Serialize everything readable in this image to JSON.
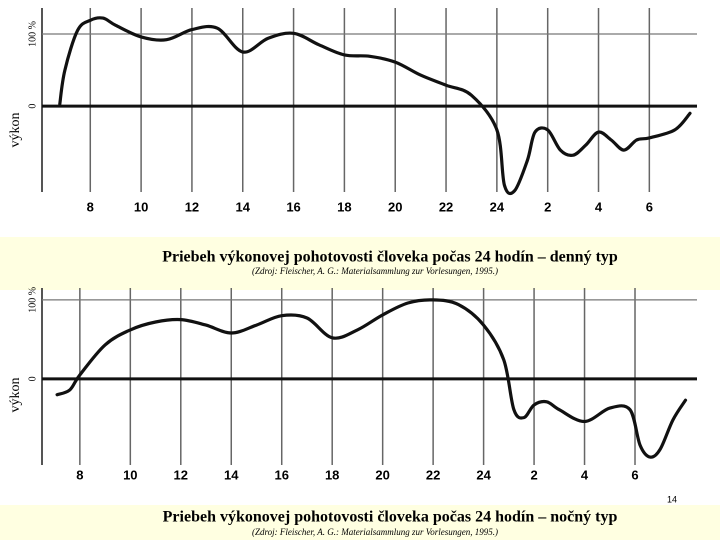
{
  "slide_number": "14",
  "chart_data": [
    {
      "type": "line",
      "title": "Priebeh výkonovej pohotovosti človeka počas 24 hodín – denný typ",
      "source": "(Zdroj: Fleischer, A. G.: Materialsammlung zur Vorlesungen, 1995.)",
      "ylabel": "výkon",
      "color": "#111111",
      "x": [
        6.8,
        7,
        7.5,
        8,
        8.5,
        9,
        10,
        11,
        12,
        13,
        14,
        15,
        16,
        17,
        18,
        19,
        20,
        21,
        22,
        23,
        24,
        24.3,
        24.7,
        25.2,
        25.5,
        26,
        26.5,
        27,
        27.5,
        28,
        28.5,
        29,
        29.5,
        30,
        31,
        31.6
      ],
      "values": [
        3,
        50,
        105,
        119,
        122,
        112,
        96,
        92,
        106,
        108,
        75,
        94,
        101,
        85,
        71,
        69,
        61,
        43,
        29,
        15,
        -33,
        -110,
        -117,
        -75,
        -36,
        -33,
        -61,
        -68,
        -54,
        -36,
        -47,
        -61,
        -47,
        -44,
        -33,
        -10
      ],
      "xlim": [
        6.1,
        31.6
      ],
      "xticks": [
        8,
        10,
        12,
        14,
        16,
        18,
        20,
        22,
        24,
        {
          "value": 26,
          "label": "2"
        },
        {
          "value": 28,
          "label": "4"
        },
        {
          "value": 30,
          "label": "6"
        }
      ],
      "ylim": [
        -119,
        136
      ],
      "yticks": [
        0,
        {
          "value": 100,
          "label": "100 %"
        }
      ],
      "grid": true
    },
    {
      "type": "line",
      "title": "Priebeh výkonovej pohotovosti človeka počas 24 hodín – nočný typ",
      "source": "(Zdroj: Fleischer, A. G.: Materialsammlung zur Vorlesungen, 1995.)",
      "ylabel": "výkon",
      "color": "#111111",
      "x": [
        7.1,
        7.6,
        8,
        9,
        10,
        11,
        12,
        13,
        14,
        15,
        16,
        17,
        18,
        19,
        20,
        21,
        22,
        23,
        24,
        24.8,
        25.2,
        25.6,
        26,
        26.5,
        27,
        28,
        29,
        29.8,
        30.2,
        30.6,
        31,
        31.5,
        32
      ],
      "values": [
        -20,
        -14,
        5,
        43,
        62,
        72,
        75,
        68,
        58,
        68,
        80,
        77,
        52,
        62,
        81,
        96,
        100,
        94,
        68,
        24,
        -39,
        -49,
        -33,
        -29,
        -39,
        -54,
        -37,
        -39,
        -84,
        -99,
        -89,
        -52,
        -27
      ],
      "xlim": [
        6.5,
        32.1
      ],
      "xticks": [
        8,
        10,
        12,
        14,
        16,
        18,
        20,
        22,
        24,
        {
          "value": 26,
          "label": "2"
        },
        {
          "value": 28,
          "label": "4"
        },
        {
          "value": 30,
          "label": "6"
        }
      ],
      "ylim": [
        -109,
        115
      ],
      "yticks": [
        0,
        {
          "value": 100,
          "label": "100 %"
        }
      ],
      "grid": true
    }
  ]
}
